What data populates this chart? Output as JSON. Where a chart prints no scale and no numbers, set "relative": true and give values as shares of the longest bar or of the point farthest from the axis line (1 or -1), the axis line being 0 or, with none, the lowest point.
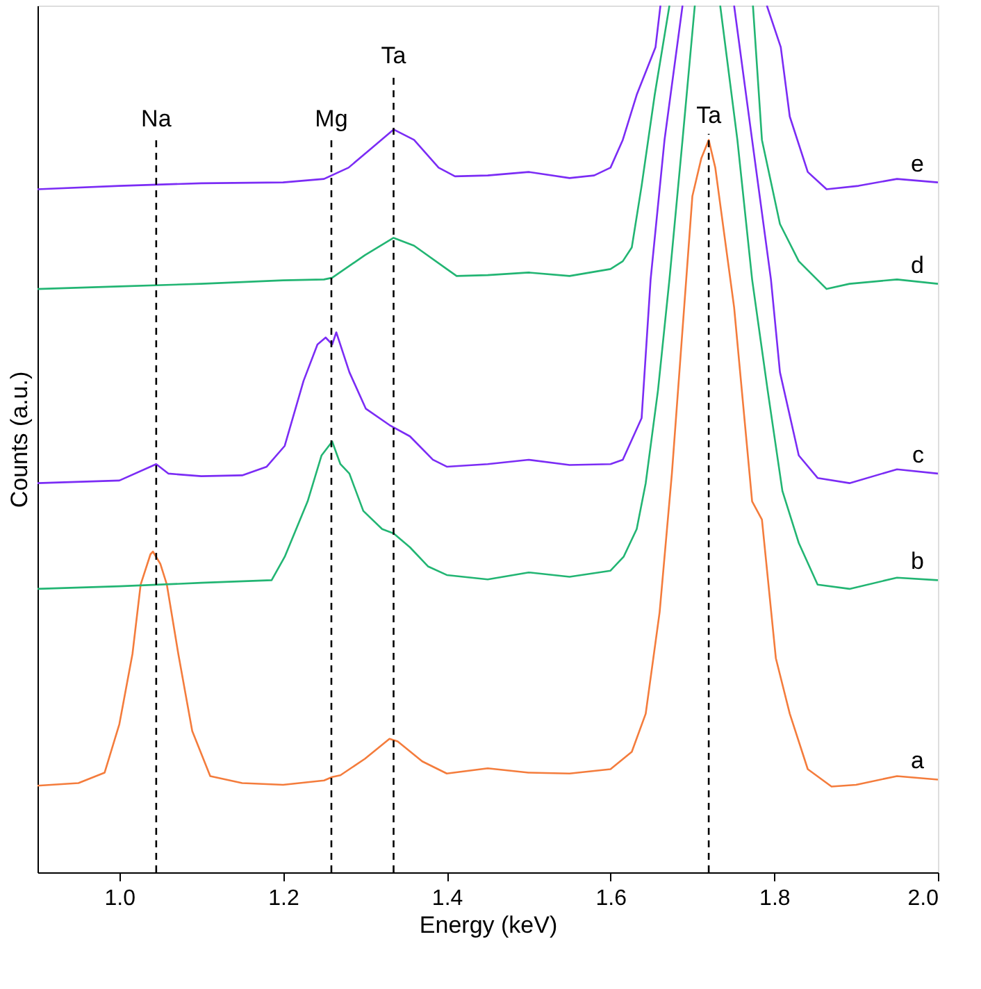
{
  "chart_data": {
    "type": "line",
    "relative": true,
    "xlabel": "Energy (keV)",
    "ylabel": "Counts (a.u.)",
    "xlim": [
      0.9,
      2.0
    ],
    "xticks": [
      {
        "value": 1.0,
        "label": "1.0"
      },
      {
        "value": 1.2,
        "label": "1.2"
      },
      {
        "value": 1.4,
        "label": "1.4"
      },
      {
        "value": 1.6,
        "label": "1.6"
      },
      {
        "value": 1.8,
        "label": "1.8"
      },
      {
        "value": 2.0,
        "label": "2.0"
      }
    ],
    "grid": false,
    "marker": "none",
    "line_style": "solid",
    "series": [
      {
        "name": "a",
        "color": "#f47c3c",
        "x": [
          0.9,
          0.95,
          0.982,
          1.0,
          1.016,
          1.026,
          1.038,
          1.041,
          1.05,
          1.058,
          1.072,
          1.089,
          1.111,
          1.15,
          1.2,
          1.25,
          1.26,
          1.27,
          1.3,
          1.33,
          1.34,
          1.37,
          1.4,
          1.45,
          1.5,
          1.55,
          1.6,
          1.626,
          1.643,
          1.66,
          1.675,
          1.7,
          1.711,
          1.72,
          1.728,
          1.751,
          1.773,
          1.785,
          1.802,
          1.819,
          1.841,
          1.87,
          1.9,
          1.95,
          2.0
        ],
        "values": [
          0.1,
          0.103,
          0.115,
          0.171,
          0.252,
          0.332,
          0.367,
          0.37,
          0.356,
          0.332,
          0.252,
          0.163,
          0.111,
          0.103,
          0.101,
          0.106,
          0.11,
          0.112,
          0.131,
          0.154,
          0.151,
          0.128,
          0.114,
          0.12,
          0.115,
          0.114,
          0.119,
          0.139,
          0.183,
          0.3,
          0.46,
          0.78,
          0.824,
          0.845,
          0.813,
          0.652,
          0.428,
          0.407,
          0.247,
          0.183,
          0.119,
          0.099,
          0.101,
          0.111,
          0.107
        ]
      },
      {
        "name": "b",
        "color": "#22b573",
        "x": [
          0.9,
          1.0,
          1.1,
          1.186,
          1.202,
          1.23,
          1.247,
          1.26,
          1.27,
          1.281,
          1.298,
          1.321,
          1.335,
          1.355,
          1.377,
          1.4,
          1.45,
          1.5,
          1.55,
          1.6,
          1.616,
          1.632,
          1.643,
          1.658,
          1.672,
          1.688,
          1.703,
          1.72,
          1.734,
          1.755,
          1.773,
          1.792,
          1.81,
          1.83,
          1.853,
          1.892,
          1.95,
          2.0
        ],
        "values": [
          0.327,
          0.33,
          0.334,
          0.337,
          0.364,
          0.428,
          0.481,
          0.497,
          0.471,
          0.46,
          0.417,
          0.396,
          0.391,
          0.375,
          0.353,
          0.343,
          0.338,
          0.346,
          0.341,
          0.348,
          0.364,
          0.396,
          0.449,
          0.556,
          0.684,
          0.845,
          1.0,
          null,
          1.0,
          0.845,
          0.684,
          0.556,
          0.44,
          0.38,
          0.332,
          0.327,
          0.34,
          0.337
        ]
      },
      {
        "name": "c",
        "color": "#7b2cf5",
        "x": [
          0.9,
          1.0,
          1.045,
          1.06,
          1.1,
          1.15,
          1.18,
          1.202,
          1.225,
          1.242,
          1.252,
          1.26,
          1.265,
          1.281,
          1.301,
          1.33,
          1.355,
          1.383,
          1.4,
          1.45,
          1.5,
          1.55,
          1.6,
          1.615,
          1.638,
          1.649,
          1.666,
          1.688,
          1.72,
          1.751,
          1.773,
          1.796,
          1.807,
          1.83,
          1.853,
          1.892,
          1.95,
          2.0
        ],
        "values": [
          0.449,
          0.452,
          0.471,
          0.46,
          0.457,
          0.458,
          0.468,
          0.492,
          0.567,
          0.609,
          0.617,
          0.609,
          0.623,
          0.577,
          0.535,
          0.516,
          0.503,
          0.476,
          0.468,
          0.471,
          0.476,
          0.47,
          0.471,
          0.476,
          0.524,
          0.684,
          0.845,
          1.0,
          null,
          1.0,
          0.845,
          0.684,
          0.577,
          0.481,
          0.455,
          0.449,
          0.465,
          0.46
        ]
      },
      {
        "name": "d",
        "color": "#22b573",
        "x": [
          0.9,
          1.0,
          1.1,
          1.2,
          1.25,
          1.26,
          1.3,
          1.335,
          1.36,
          1.4,
          1.412,
          1.45,
          1.5,
          1.55,
          1.6,
          1.615,
          1.626,
          1.638,
          1.654,
          1.672,
          1.72,
          1.774,
          1.785,
          1.807,
          1.83,
          1.864,
          1.892,
          1.95,
          2.0
        ],
        "values": [
          0.673,
          0.676,
          0.679,
          0.683,
          0.684,
          0.686,
          0.712,
          0.732,
          0.723,
          0.696,
          0.688,
          0.689,
          0.692,
          0.688,
          0.696,
          0.705,
          0.721,
          0.792,
          0.897,
          1.0,
          null,
          1.0,
          0.845,
          0.748,
          0.705,
          0.673,
          0.679,
          0.684,
          0.679
        ]
      },
      {
        "name": "e",
        "color": "#7b2cf5",
        "x": [
          0.9,
          1.0,
          1.1,
          1.2,
          1.25,
          1.28,
          1.31,
          1.335,
          1.36,
          1.39,
          1.41,
          1.45,
          1.5,
          1.55,
          1.58,
          1.6,
          1.615,
          1.632,
          1.655,
          1.661,
          1.72,
          1.791,
          1.808,
          1.819,
          1.841,
          1.864,
          1.903,
          1.95,
          2.0
        ],
        "values": [
          0.788,
          0.792,
          0.795,
          0.796,
          0.8,
          0.813,
          0.837,
          0.857,
          0.845,
          0.813,
          0.803,
          0.804,
          0.808,
          0.801,
          0.804,
          0.813,
          0.845,
          0.897,
          0.952,
          1.0,
          null,
          1.0,
          0.952,
          0.872,
          0.808,
          0.788,
          0.792,
          0.8,
          0.796
        ]
      }
    ],
    "ref_lines": [
      {
        "axis": "x",
        "value": 1.045,
        "color": "#000000",
        "line_style": "dashed"
      },
      {
        "axis": "x",
        "value": 1.259,
        "color": "#000000",
        "line_style": "dashed"
      },
      {
        "axis": "x",
        "value": 1.335,
        "color": "#000000",
        "line_style": "dashed"
      },
      {
        "axis": "x",
        "value": 1.72,
        "color": "#000000",
        "line_style": "dashed"
      }
    ],
    "annotations": [
      {
        "text": "Na",
        "x": 1.045,
        "y": 0.848
      },
      {
        "text": "Mg",
        "x": 1.259,
        "y": 0.848
      },
      {
        "text": "Ta",
        "x": 1.335,
        "y": 0.921
      },
      {
        "text": "Ta",
        "x": 1.72,
        "y": 0.852
      }
    ]
  }
}
